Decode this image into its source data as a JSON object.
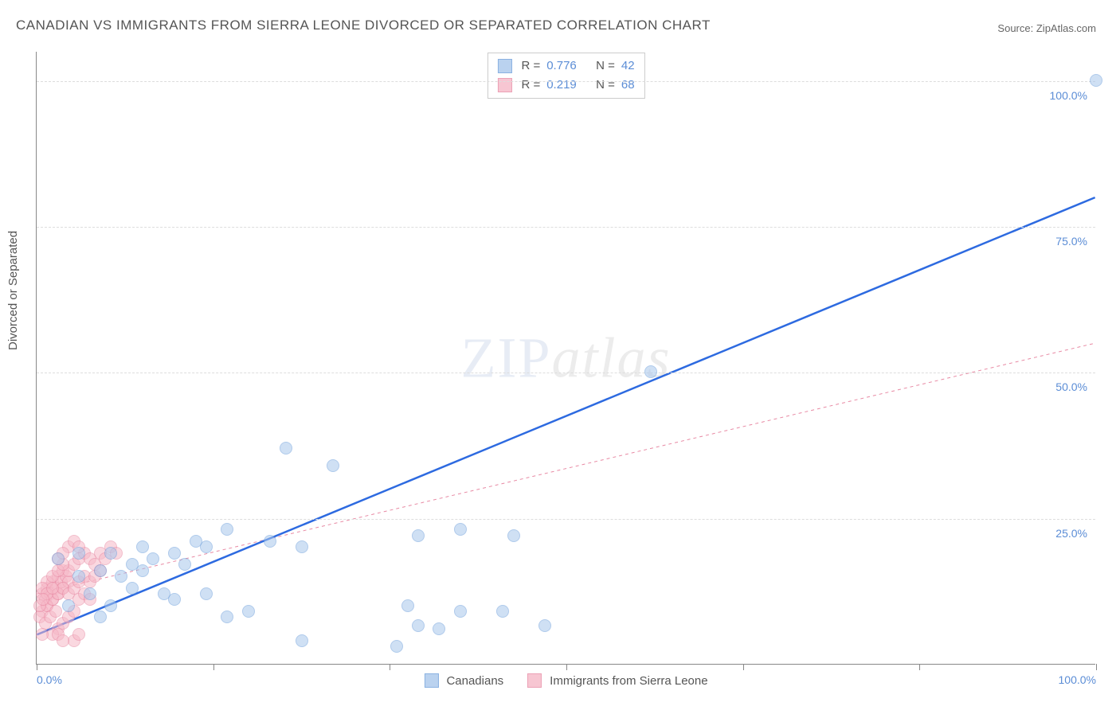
{
  "title": "CANADIAN VS IMMIGRANTS FROM SIERRA LEONE DIVORCED OR SEPARATED CORRELATION CHART",
  "source_label": "Source:",
  "source_name": "ZipAtlas.com",
  "ylabel": "Divorced or Separated",
  "watermark": {
    "part1": "ZIP",
    "part2": "atlas"
  },
  "chart": {
    "type": "scatter",
    "background_color": "#ffffff",
    "grid_color": "#dddddd",
    "axis_color": "#888888",
    "xlim": [
      0,
      100
    ],
    "ylim": [
      0,
      105
    ],
    "x_ticks": [
      0,
      16.67,
      33.33,
      50,
      66.67,
      83.33,
      100
    ],
    "x_tick_labels": {
      "0": "0.0%",
      "100": "100.0%"
    },
    "y_ticks": [
      25,
      50,
      75,
      100
    ],
    "y_tick_labels": {
      "25": "25.0%",
      "50": "50.0%",
      "75": "75.0%",
      "100": "100.0%"
    },
    "tick_label_color": "#5b8dd6",
    "tick_label_fontsize": 14
  },
  "series": {
    "canadians": {
      "label": "Canadians",
      "fill_color": "#a9c7ec",
      "stroke_color": "#6fa0db",
      "fill_opacity": 0.55,
      "marker_radius": 8,
      "r_value": "0.776",
      "n_value": "42",
      "trend": {
        "x1": 0,
        "y1": 5,
        "x2": 100,
        "y2": 80,
        "stroke": "#2d6ae0",
        "width": 2.5,
        "dash": "none"
      },
      "points": [
        [
          100,
          100
        ],
        [
          58,
          50
        ],
        [
          23.5,
          37
        ],
        [
          28,
          34
        ],
        [
          40,
          23
        ],
        [
          45,
          22
        ],
        [
          36,
          22
        ],
        [
          18,
          23
        ],
        [
          22,
          21
        ],
        [
          25,
          20
        ],
        [
          10,
          20
        ],
        [
          13,
          19
        ],
        [
          16,
          20
        ],
        [
          15,
          21
        ],
        [
          7,
          19
        ],
        [
          9,
          17
        ],
        [
          11,
          18
        ],
        [
          14,
          17
        ],
        [
          4,
          15
        ],
        [
          6,
          16
        ],
        [
          8,
          15
        ],
        [
          10,
          16
        ],
        [
          5,
          12
        ],
        [
          9,
          13
        ],
        [
          12,
          12
        ],
        [
          16,
          12
        ],
        [
          3,
          10
        ],
        [
          7,
          10
        ],
        [
          6,
          8
        ],
        [
          18,
          8
        ],
        [
          25,
          4
        ],
        [
          20,
          9
        ],
        [
          35,
          10
        ],
        [
          40,
          9
        ],
        [
          44,
          9
        ],
        [
          34,
          3
        ],
        [
          36,
          6.5
        ],
        [
          38,
          6
        ],
        [
          48,
          6.5
        ],
        [
          2,
          18
        ],
        [
          4,
          19
        ],
        [
          13,
          11
        ]
      ]
    },
    "immigrants": {
      "label": "Immigrants from Sierra Leone",
      "fill_color": "#f6b9c8",
      "stroke_color": "#e88aa4",
      "fill_opacity": 0.55,
      "marker_radius": 8,
      "r_value": "0.219",
      "n_value": "68",
      "trend": {
        "x1": 0,
        "y1": 12,
        "x2": 100,
        "y2": 55,
        "stroke": "#e88aa4",
        "width": 1,
        "dash": "4 4"
      },
      "points": [
        [
          0.5,
          12
        ],
        [
          1,
          13
        ],
        [
          1.5,
          14
        ],
        [
          2,
          15
        ],
        [
          2.5,
          16
        ],
        [
          0.8,
          11
        ],
        [
          1.3,
          12
        ],
        [
          1.8,
          13
        ],
        [
          2.3,
          14
        ],
        [
          2.8,
          15
        ],
        [
          1,
          10
        ],
        [
          1.5,
          11
        ],
        [
          2,
          12
        ],
        [
          2.5,
          13
        ],
        [
          3,
          14
        ],
        [
          0.5,
          9
        ],
        [
          1,
          10
        ],
        [
          1.5,
          11
        ],
        [
          2,
          12
        ],
        [
          2.5,
          13
        ],
        [
          3,
          16
        ],
        [
          3.5,
          17
        ],
        [
          4,
          18
        ],
        [
          4.5,
          19
        ],
        [
          3,
          12
        ],
        [
          3.5,
          13
        ],
        [
          4,
          14
        ],
        [
          4.5,
          15
        ],
        [
          5,
          18
        ],
        [
          5.5,
          17
        ],
        [
          6,
          19
        ],
        [
          6.5,
          18
        ],
        [
          5,
          14
        ],
        [
          5.5,
          15
        ],
        [
          6,
          16
        ],
        [
          0.3,
          8
        ],
        [
          0.8,
          7
        ],
        [
          1.3,
          8
        ],
        [
          1.8,
          9
        ],
        [
          2,
          6
        ],
        [
          2.5,
          7
        ],
        [
          3,
          8
        ],
        [
          3.5,
          9
        ],
        [
          1,
          14
        ],
        [
          1.5,
          15
        ],
        [
          2,
          16
        ],
        [
          2.5,
          17
        ],
        [
          0.5,
          13
        ],
        [
          1,
          12
        ],
        [
          1.5,
          13
        ],
        [
          3,
          20
        ],
        [
          3.5,
          21
        ],
        [
          4,
          20
        ],
        [
          7,
          20
        ],
        [
          7.5,
          19
        ],
        [
          2,
          18
        ],
        [
          2.5,
          19
        ],
        [
          0.3,
          10
        ],
        [
          0.6,
          11
        ],
        [
          4,
          11
        ],
        [
          4.5,
          12
        ],
        [
          5,
          11
        ],
        [
          1.5,
          5
        ],
        [
          2,
          5
        ],
        [
          0.5,
          5
        ],
        [
          3.5,
          4
        ],
        [
          4,
          5
        ],
        [
          2.5,
          4
        ]
      ]
    }
  },
  "legend_top": {
    "r_label": "R =",
    "n_label": "N ="
  }
}
